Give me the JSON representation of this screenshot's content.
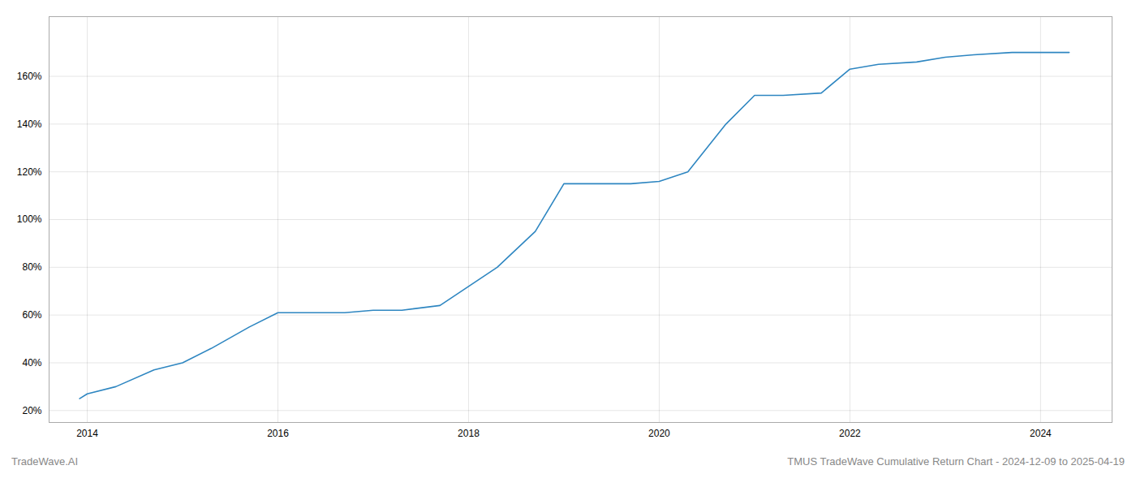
{
  "chart_data": {
    "type": "line",
    "title": "TMUS TradeWave Cumulative Return Chart - 2024-12-09 to 2025-04-19",
    "annotations": [
      "TradeWave.AI"
    ],
    "x": [
      2013.92,
      2014.0,
      2014.3,
      2014.7,
      2015.0,
      2015.3,
      2015.7,
      2016.0,
      2016.3,
      2016.5,
      2016.7,
      2017.0,
      2017.3,
      2017.7,
      2018.0,
      2018.3,
      2018.7,
      2019.0,
      2019.3,
      2019.5,
      2019.7,
      2020.0,
      2020.3,
      2020.7,
      2021.0,
      2021.3,
      2021.7,
      2022.0,
      2022.3,
      2022.7,
      2023.0,
      2023.3,
      2023.7,
      2024.0,
      2024.3
    ],
    "values": [
      25,
      27,
      30,
      37,
      40,
      46,
      55,
      61,
      61,
      61,
      61,
      62,
      62,
      64,
      72,
      80,
      95,
      115,
      115,
      115,
      115,
      116,
      120,
      140,
      152,
      152,
      153,
      163,
      165,
      166,
      168,
      169,
      170,
      170,
      170
    ],
    "color": "#2e86c1",
    "xlim": [
      2013.6,
      2024.75
    ],
    "xticks": [
      2014,
      2016,
      2018,
      2020,
      2022,
      2024
    ],
    "ylim": [
      15,
      185
    ],
    "yticks": [
      {
        "value": 20,
        "label": "20%"
      },
      {
        "value": 40,
        "label": "40%"
      },
      {
        "value": 60,
        "label": "60%"
      },
      {
        "value": 80,
        "label": "80%"
      },
      {
        "value": 100,
        "label": "100%"
      },
      {
        "value": 120,
        "label": "120%"
      },
      {
        "value": 140,
        "label": "140%"
      },
      {
        "value": 160,
        "label": "160%"
      }
    ],
    "grid": true
  }
}
